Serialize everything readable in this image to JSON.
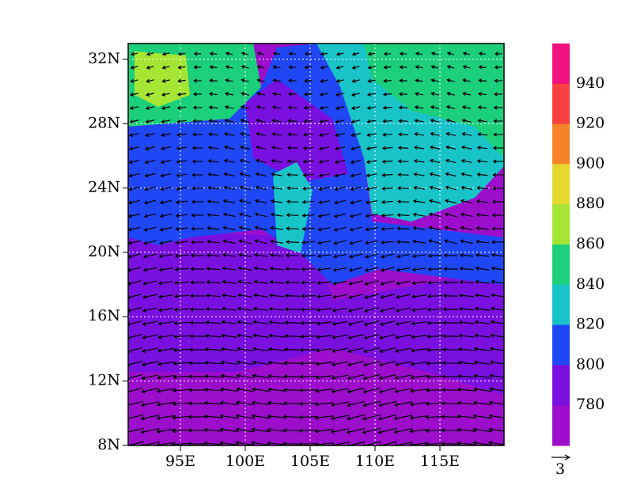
{
  "map": {
    "lon_labels": [
      "95E",
      "100E",
      "105E",
      "110E",
      "115E"
    ],
    "lat_labels": [
      "32N",
      "28N",
      "24N",
      "20N",
      "16N",
      "12N",
      "8N"
    ],
    "colorbar": {
      "colors": [
        "#f0127f",
        "#f94040",
        "#f5832a",
        "#e5d930",
        "#a5e635",
        "#1ccf7b",
        "#19c4c8",
        "#2047f5",
        "#7a10e0",
        "#9c0dcc"
      ],
      "labels": [
        940,
        920,
        900,
        880,
        860,
        840,
        820,
        800,
        780
      ]
    },
    "reference_vector": "3"
  }
}
